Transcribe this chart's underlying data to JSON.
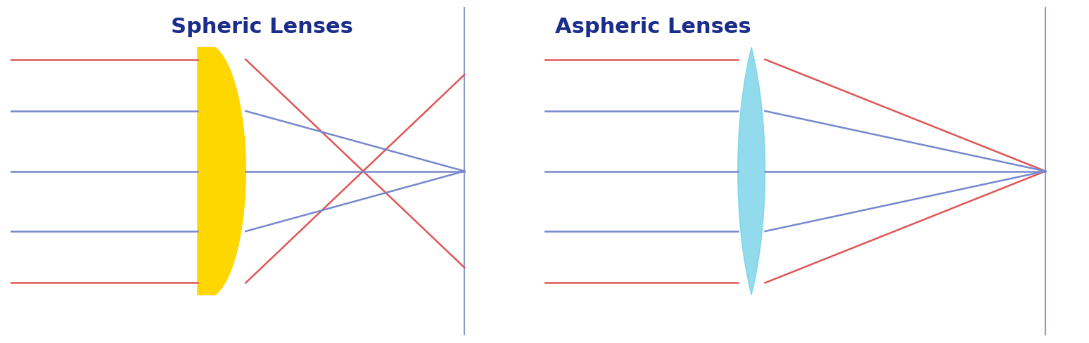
{
  "title_spheric": "Spheric Lenses",
  "title_aspheric": "Aspheric Lenses",
  "title_color": "#1a2d8a",
  "title_fontsize": 22,
  "title_fontweight": "bold",
  "bg_color": "#ffffff",
  "spheric_lens_color": "#FFD700",
  "aspheric_lens_color": "#6DCFE8",
  "focal_line_color": "#8899CC",
  "red_line_color": "#E05555",
  "blue_line_color": "#7788CC",
  "line_width": 1.8
}
